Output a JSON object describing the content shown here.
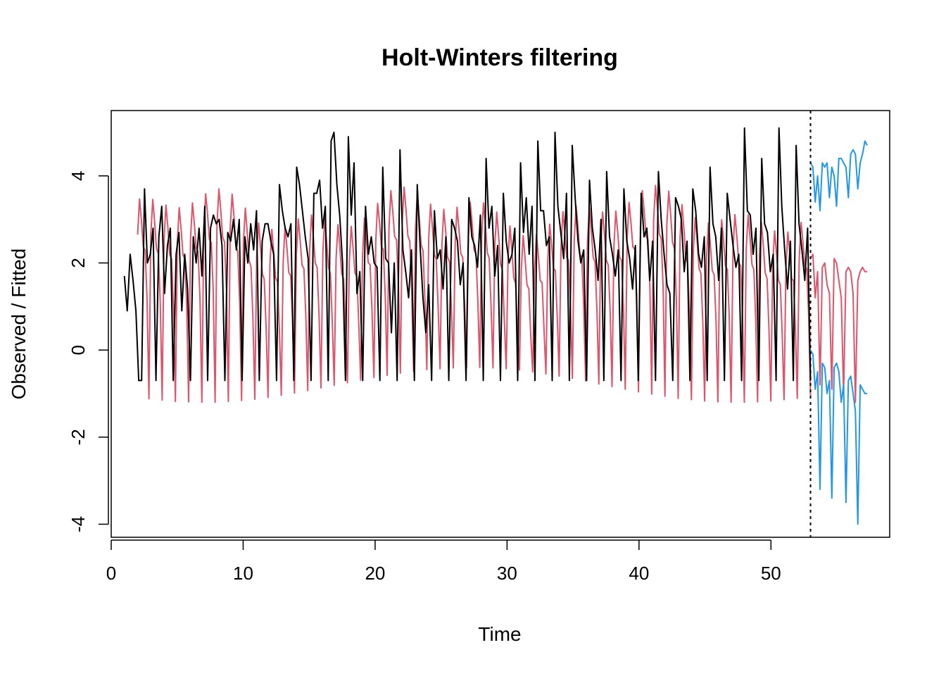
{
  "chart_data": {
    "type": "line",
    "title": "Holt-Winters filtering",
    "xlabel": "Time",
    "ylabel": "Observed / Fitted",
    "xlim": [
      0,
      59
    ],
    "ylim": [
      -4.3,
      5.5
    ],
    "x_ticks": [
      0,
      10,
      20,
      30,
      40,
      50
    ],
    "y_ticks": [
      -4,
      -2,
      0,
      2,
      4
    ],
    "x_tick_labels": [
      "0",
      "10",
      "20",
      "30",
      "40",
      "50"
    ],
    "y_tick_labels": [
      "-4",
      "-2",
      "0",
      "2",
      "4"
    ],
    "grid": false,
    "legend": "none",
    "forecast_start": 53,
    "colors": {
      "observed": "#000000",
      "fitted": "#DF536B",
      "forecast_bounds": "#2297E6",
      "forecast_start_line": "#000000"
    },
    "period": 7,
    "observed_template": [
      2.5,
      3.4,
      2.3,
      1.9,
      2.3,
      0.4,
      -0.7
    ],
    "fitted_template": [
      2.4,
      3.2,
      2.7,
      2.1,
      2.0,
      0.9,
      -0.4
    ],
    "series": [
      {
        "role": "observed",
        "x_start": 1,
        "x_end": 53,
        "values": [
          1.7,
          0.9,
          2.2,
          1.6,
          0.9,
          -0.7,
          -0.7,
          3.7,
          2.0,
          2.2,
          2.8,
          -0.7,
          2.6,
          3.3,
          1.3,
          2.4,
          2.8,
          -0.7,
          2.2,
          2.7,
          0.9,
          2.2,
          1.4,
          -0.7,
          2.6,
          2.0,
          2.8,
          1.7,
          3.3,
          -0.7,
          2.8,
          3.1,
          2.9,
          3.0,
          2.4,
          -0.7,
          2.7,
          2.5,
          3.0,
          2.3,
          3.0,
          -0.7,
          2.6,
          2.0,
          2.9,
          2.3,
          3.2,
          -0.7,
          2.5,
          2.9,
          2.9,
          2.5,
          2.2,
          -0.7,
          3.8,
          3.2,
          2.8,
          2.6,
          2.9,
          -0.7,
          4.2,
          3.8,
          3.2,
          2.6,
          2.1,
          -0.7,
          3.6,
          3.6,
          3.9,
          2.8,
          3.3,
          -0.7,
          4.8,
          5.0,
          3.8,
          3.1,
          2.0,
          -0.7,
          4.9,
          3.1,
          4.3,
          1.3,
          1.8,
          -0.7,
          3.3,
          2.2,
          2.6,
          2.0,
          1.9,
          -0.7,
          4.2,
          2.1,
          2.0,
          0.4,
          2.0,
          -0.7,
          4.6,
          2.3,
          1.8,
          1.2,
          2.3,
          -0.7,
          3.8,
          2.4,
          1.2,
          0.4,
          1.5,
          -0.7,
          3.2,
          2.1,
          2.3,
          1.4,
          2.6,
          -0.7,
          3.0,
          2.8,
          2.5,
          1.5,
          2.0,
          -0.7,
          3.5,
          2.6,
          2.4,
          1.9,
          3.1,
          -0.7,
          4.4,
          2.8,
          3.3,
          1.7,
          2.4,
          -0.7,
          3.6,
          2.5,
          2.0,
          2.2,
          2.8,
          -0.7,
          4.3,
          2.7,
          3.5,
          2.2,
          3.3,
          -0.7,
          4.8,
          3.2,
          3.2,
          2.4,
          2.6,
          -0.7,
          5.0,
          3.3,
          2.7,
          2.1,
          3.6,
          -0.7,
          4.7,
          3.5,
          2.5,
          2.0,
          2.3,
          -0.7,
          3.9,
          2.8,
          2.3,
          1.6,
          3.0,
          -0.7,
          4.1,
          2.6,
          2.2,
          1.7,
          2.3,
          -0.7,
          3.7,
          2.5,
          2.1,
          1.4,
          2.4,
          -0.7,
          3.6,
          2.6,
          2.8,
          1.6,
          2.5,
          -0.7,
          4.1,
          3.0,
          2.2,
          1.5,
          1.3,
          -0.7,
          3.5,
          3.3,
          3.0,
          1.8,
          2.5,
          -0.7,
          3.7,
          3.2,
          2.2,
          1.9,
          2.6,
          -0.7,
          4.2,
          2.9,
          2.6,
          1.6,
          2.8,
          -0.7,
          3.6,
          3.0,
          2.4,
          1.9,
          2.2,
          -0.7,
          5.1,
          3.2,
          3.1,
          2.2,
          2.8,
          -0.7,
          4.4,
          2.9,
          2.7,
          1.8,
          2.2,
          -0.7,
          5.1,
          3.3,
          2.3,
          1.4,
          2.5,
          -0.7,
          4.7,
          2.9,
          2.3,
          1.6,
          2.8,
          -0.7
        ],
        "values_shown_approximately": true
      },
      {
        "role": "fitted",
        "x_start": 2,
        "x_end": 53,
        "values_shown_approximately": true
      },
      {
        "role": "forecast_upper",
        "x_start": 53,
        "x_end": 57.3,
        "values": [
          4.3,
          4.2,
          3.4,
          4.0,
          3.2,
          4.3,
          4.2,
          4.3,
          3.5,
          4.2,
          4.0,
          3.3,
          4.4,
          4.4,
          4.3,
          4.2,
          3.5,
          4.5,
          4.6,
          4.5,
          3.7,
          4.3,
          4.5,
          4.8,
          4.7
        ],
        "values_shown_approximately": true
      },
      {
        "role": "forecast_lower",
        "x_start": 53,
        "x_end": 57.3,
        "values": [
          0.0,
          -0.1,
          -0.9,
          -0.5,
          -3.2,
          -0.3,
          -0.4,
          -1.0,
          -0.7,
          -3.4,
          -0.4,
          -0.3,
          -0.5,
          -1.2,
          -0.8,
          -3.5,
          -0.7,
          -0.6,
          -1.0,
          -1.4,
          -4.0,
          -0.8,
          -0.9,
          -1.0,
          -1.0
        ],
        "values_shown_approximately": true
      },
      {
        "role": "forecast_point",
        "x_start": 53,
        "x_end": 57.3,
        "values": [
          2.1,
          2.2,
          1.2,
          1.8,
          -0.8,
          1.9,
          2.0,
          1.5,
          1.3,
          -0.9,
          2.1,
          2.0,
          1.6,
          1.2,
          -1.0,
          1.8,
          1.9,
          1.8,
          1.3,
          -1.2,
          1.6,
          1.8,
          1.9,
          1.8,
          1.8
        ],
        "values_shown_approximately": true
      }
    ]
  }
}
